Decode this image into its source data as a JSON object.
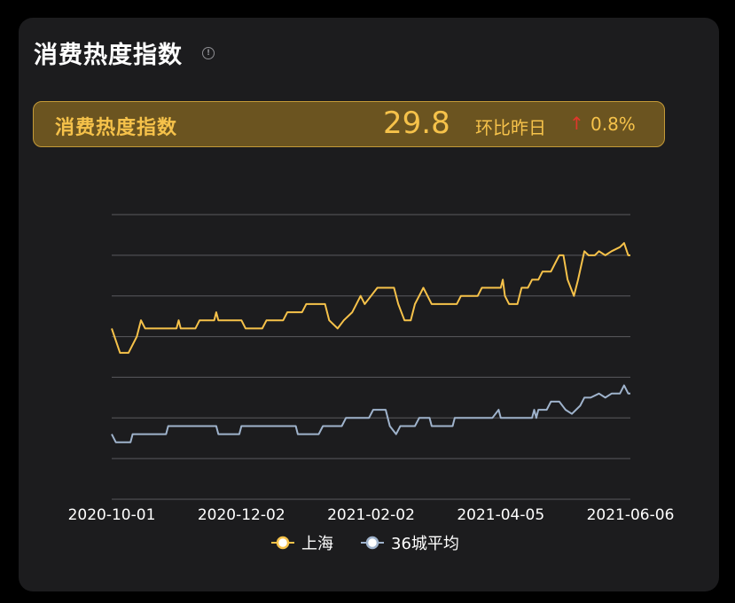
{
  "header": {
    "title": "消费热度指数"
  },
  "highlight": {
    "label": "消费热度指数",
    "value": "29.8",
    "compare_label": "环比昨日",
    "change": "0.8%",
    "direction": "up"
  },
  "colors": {
    "shanghai": "#f6c24a",
    "avg36": "#9fb3cc",
    "arrow_up": "#e0372c",
    "grid": "#5a5a5e"
  },
  "chart_data": {
    "type": "line",
    "title": "",
    "xlabel": "",
    "ylabel": "",
    "x_start": "2020-10-01",
    "x_end": "2021-06-06",
    "x_ticks": [
      "2020-10-01",
      "2020-12-02",
      "2021-02-02",
      "2021-04-05",
      "2021-06-06"
    ],
    "ylim": [
      0,
      7
    ],
    "y_gridlines": 8,
    "y_tick_labels_shown": false,
    "legend_position": "bottom",
    "series": [
      {
        "name": "上海",
        "color": "#f6c24a",
        "points": [
          [
            "2020-10-01",
            4.2
          ],
          [
            "2020-10-03",
            3.9
          ],
          [
            "2020-10-05",
            3.6
          ],
          [
            "2020-10-09",
            3.6
          ],
          [
            "2020-10-13",
            4.0
          ],
          [
            "2020-10-15",
            4.4
          ],
          [
            "2020-10-17",
            4.2
          ],
          [
            "2020-11-01",
            4.2
          ],
          [
            "2020-11-02",
            4.4
          ],
          [
            "2020-11-03",
            4.2
          ],
          [
            "2020-11-10",
            4.2
          ],
          [
            "2020-11-12",
            4.4
          ],
          [
            "2020-11-19",
            4.4
          ],
          [
            "2020-11-20",
            4.6
          ],
          [
            "2020-11-21",
            4.4
          ],
          [
            "2020-12-02",
            4.4
          ],
          [
            "2020-12-04",
            4.2
          ],
          [
            "2020-12-12",
            4.2
          ],
          [
            "2020-12-14",
            4.4
          ],
          [
            "2020-12-22",
            4.4
          ],
          [
            "2020-12-24",
            4.6
          ],
          [
            "2020-12-31",
            4.6
          ],
          [
            "2021-01-02",
            4.8
          ],
          [
            "2021-01-11",
            4.8
          ],
          [
            "2021-01-13",
            4.4
          ],
          [
            "2021-01-17",
            4.2
          ],
          [
            "2021-01-20",
            4.4
          ],
          [
            "2021-01-24",
            4.6
          ],
          [
            "2021-01-26",
            4.8
          ],
          [
            "2021-01-28",
            5.0
          ],
          [
            "2021-01-30",
            4.8
          ],
          [
            "2021-02-02",
            5.0
          ],
          [
            "2021-02-05",
            5.2
          ],
          [
            "2021-02-13",
            5.2
          ],
          [
            "2021-02-15",
            4.8
          ],
          [
            "2021-02-18",
            4.4
          ],
          [
            "2021-02-21",
            4.4
          ],
          [
            "2021-02-23",
            4.8
          ],
          [
            "2021-02-25",
            5.0
          ],
          [
            "2021-02-27",
            5.2
          ],
          [
            "2021-03-01",
            5.0
          ],
          [
            "2021-03-03",
            4.8
          ],
          [
            "2021-03-15",
            4.8
          ],
          [
            "2021-03-17",
            5.0
          ],
          [
            "2021-03-25",
            5.0
          ],
          [
            "2021-03-27",
            5.2
          ],
          [
            "2021-04-05",
            5.2
          ],
          [
            "2021-04-06",
            5.4
          ],
          [
            "2021-04-07",
            5.0
          ],
          [
            "2021-04-09",
            4.8
          ],
          [
            "2021-04-13",
            4.8
          ],
          [
            "2021-04-15",
            5.2
          ],
          [
            "2021-04-18",
            5.2
          ],
          [
            "2021-04-20",
            5.4
          ],
          [
            "2021-04-23",
            5.4
          ],
          [
            "2021-04-25",
            5.6
          ],
          [
            "2021-04-29",
            5.6
          ],
          [
            "2021-05-01",
            5.8
          ],
          [
            "2021-05-03",
            6.0
          ],
          [
            "2021-05-05",
            6.0
          ],
          [
            "2021-05-07",
            5.4
          ],
          [
            "2021-05-10",
            5.0
          ],
          [
            "2021-05-12",
            5.4
          ],
          [
            "2021-05-15",
            6.1
          ],
          [
            "2021-05-17",
            6.0
          ],
          [
            "2021-05-20",
            6.0
          ],
          [
            "2021-05-22",
            6.1
          ],
          [
            "2021-05-25",
            6.0
          ],
          [
            "2021-05-28",
            6.1
          ],
          [
            "2021-06-01",
            6.2
          ],
          [
            "2021-06-03",
            6.3
          ],
          [
            "2021-06-05",
            6.0
          ],
          [
            "2021-06-06",
            6.0
          ]
        ]
      },
      {
        "name": "36城平均",
        "color": "#9fb3cc",
        "points": [
          [
            "2020-10-01",
            1.6
          ],
          [
            "2020-10-03",
            1.4
          ],
          [
            "2020-10-10",
            1.4
          ],
          [
            "2020-10-11",
            1.6
          ],
          [
            "2020-10-27",
            1.6
          ],
          [
            "2020-10-28",
            1.8
          ],
          [
            "2020-11-20",
            1.8
          ],
          [
            "2020-11-21",
            1.6
          ],
          [
            "2020-12-01",
            1.6
          ],
          [
            "2020-12-02",
            1.8
          ],
          [
            "2020-12-28",
            1.8
          ],
          [
            "2020-12-29",
            1.6
          ],
          [
            "2021-01-08",
            1.6
          ],
          [
            "2021-01-10",
            1.8
          ],
          [
            "2021-01-19",
            1.8
          ],
          [
            "2021-01-21",
            2.0
          ],
          [
            "2021-02-01",
            2.0
          ],
          [
            "2021-02-03",
            2.2
          ],
          [
            "2021-02-09",
            2.2
          ],
          [
            "2021-02-11",
            1.8
          ],
          [
            "2021-02-14",
            1.6
          ],
          [
            "2021-02-16",
            1.8
          ],
          [
            "2021-02-23",
            1.8
          ],
          [
            "2021-02-25",
            2.0
          ],
          [
            "2021-03-02",
            2.0
          ],
          [
            "2021-03-03",
            1.8
          ],
          [
            "2021-03-13",
            1.8
          ],
          [
            "2021-03-14",
            2.0
          ],
          [
            "2021-04-01",
            2.0
          ],
          [
            "2021-04-04",
            2.2
          ],
          [
            "2021-04-05",
            2.0
          ],
          [
            "2021-04-20",
            2.0
          ],
          [
            "2021-04-21",
            2.2
          ],
          [
            "2021-04-22",
            2.0
          ],
          [
            "2021-04-23",
            2.2
          ],
          [
            "2021-04-27",
            2.2
          ],
          [
            "2021-04-29",
            2.4
          ],
          [
            "2021-05-03",
            2.4
          ],
          [
            "2021-05-06",
            2.2
          ],
          [
            "2021-05-09",
            2.1
          ],
          [
            "2021-05-13",
            2.3
          ],
          [
            "2021-05-15",
            2.5
          ],
          [
            "2021-05-18",
            2.5
          ],
          [
            "2021-05-22",
            2.6
          ],
          [
            "2021-05-25",
            2.5
          ],
          [
            "2021-05-28",
            2.6
          ],
          [
            "2021-06-01",
            2.6
          ],
          [
            "2021-06-03",
            2.8
          ],
          [
            "2021-06-05",
            2.6
          ],
          [
            "2021-06-06",
            2.6
          ]
        ]
      }
    ]
  }
}
